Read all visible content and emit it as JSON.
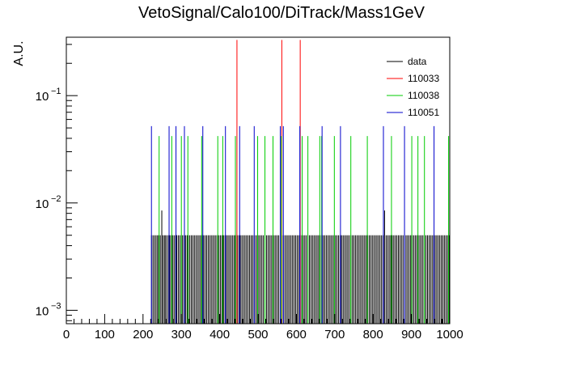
{
  "chart_data": {
    "type": "bar",
    "title": "VetoSignal/Calo100/DiTrack/Mass1GeV",
    "ylabel": "A.U.",
    "xlabel": "",
    "xlim": [
      0,
      1000
    ],
    "ylim": [
      0.00075,
      0.35
    ],
    "yscale": "log",
    "x_ticks": [
      0,
      100,
      200,
      300,
      400,
      500,
      600,
      700,
      800,
      900,
      1000
    ],
    "x_tick_labels": [
      "0",
      "100",
      "200",
      "300",
      "400",
      "500",
      "600",
      "700",
      "800",
      "900",
      "1000"
    ],
    "y_ticks": [
      0.001,
      0.01,
      0.1
    ],
    "y_tick_labels": [
      "10",
      "10",
      "10"
    ],
    "y_tick_exponents": [
      "−3",
      "−2",
      "−1"
    ],
    "legend_position": "top-right",
    "grid": false,
    "series": [
      {
        "name": "data",
        "color": "#000000",
        "note_values": "dense fill of bins at ~0.005 between x=220 and x=1000, with a few bins at ~0.0085",
        "points": [
          [
            222,
            0.005
          ],
          [
            226,
            0.005
          ],
          [
            230,
            0.005
          ],
          [
            234,
            0.005
          ],
          [
            238,
            0.005
          ],
          [
            241,
            0.005
          ],
          [
            245,
            0.005
          ],
          [
            249,
            0.0085
          ],
          [
            252,
            0.005
          ],
          [
            256,
            0.005
          ],
          [
            259,
            0.005
          ],
          [
            263,
            0.005
          ],
          [
            267,
            0.005
          ],
          [
            270,
            0.005
          ],
          [
            274,
            0.005
          ],
          [
            277,
            0.005
          ],
          [
            281,
            0.005
          ],
          [
            285,
            0.005
          ],
          [
            288,
            0.005
          ],
          [
            292,
            0.005
          ],
          [
            296,
            0.005
          ],
          [
            300,
            0.005
          ],
          [
            303,
            0.005
          ],
          [
            307,
            0.005
          ],
          [
            311,
            0.005
          ],
          [
            315,
            0.005
          ],
          [
            318,
            0.005
          ],
          [
            322,
            0.005
          ],
          [
            326,
            0.005
          ],
          [
            330,
            0.005
          ],
          [
            334,
            0.005
          ],
          [
            338,
            0.005
          ],
          [
            342,
            0.005
          ],
          [
            346,
            0.005
          ],
          [
            350,
            0.005
          ],
          [
            354,
            0.005
          ],
          [
            358,
            0.005
          ],
          [
            362,
            0.005
          ],
          [
            366,
            0.005
          ],
          [
            370,
            0.005
          ],
          [
            374,
            0.005
          ],
          [
            378,
            0.005
          ],
          [
            382,
            0.005
          ],
          [
            386,
            0.005
          ],
          [
            390,
            0.005
          ],
          [
            394,
            0.005
          ],
          [
            398,
            0.005
          ],
          [
            402,
            0.005
          ],
          [
            406,
            0.005
          ],
          [
            410,
            0.005
          ],
          [
            414,
            0.005
          ],
          [
            418,
            0.005
          ],
          [
            422,
            0.005
          ],
          [
            426,
            0.005
          ],
          [
            430,
            0.005
          ],
          [
            434,
            0.005
          ],
          [
            438,
            0.005
          ],
          [
            442,
            0.005
          ],
          [
            446,
            0.005
          ],
          [
            450,
            0.005
          ],
          [
            454,
            0.005
          ],
          [
            458,
            0.005
          ],
          [
            462,
            0.005
          ],
          [
            466,
            0.005
          ],
          [
            470,
            0.005
          ],
          [
            474,
            0.005
          ],
          [
            478,
            0.005
          ],
          [
            482,
            0.005
          ],
          [
            486,
            0.005
          ],
          [
            490,
            0.005
          ],
          [
            494,
            0.005
          ],
          [
            498,
            0.005
          ],
          [
            502,
            0.005
          ],
          [
            506,
            0.005
          ],
          [
            510,
            0.005
          ],
          [
            514,
            0.005
          ],
          [
            518,
            0.005
          ],
          [
            522,
            0.005
          ],
          [
            526,
            0.005
          ],
          [
            530,
            0.005
          ],
          [
            534,
            0.005
          ],
          [
            538,
            0.005
          ],
          [
            542,
            0.005
          ],
          [
            546,
            0.005
          ],
          [
            550,
            0.005
          ],
          [
            554,
            0.005
          ],
          [
            558,
            0.005
          ],
          [
            562,
            0.005
          ],
          [
            566,
            0.005
          ],
          [
            570,
            0.005
          ],
          [
            574,
            0.005
          ],
          [
            578,
            0.005
          ],
          [
            582,
            0.005
          ],
          [
            586,
            0.005
          ],
          [
            590,
            0.005
          ],
          [
            594,
            0.005
          ],
          [
            598,
            0.005
          ],
          [
            602,
            0.005
          ],
          [
            606,
            0.005
          ],
          [
            610,
            0.005
          ],
          [
            614,
            0.005
          ],
          [
            618,
            0.005
          ],
          [
            622,
            0.005
          ],
          [
            626,
            0.005
          ],
          [
            630,
            0.005
          ],
          [
            634,
            0.005
          ],
          [
            638,
            0.005
          ],
          [
            642,
            0.005
          ],
          [
            646,
            0.005
          ],
          [
            650,
            0.005
          ],
          [
            654,
            0.005
          ],
          [
            658,
            0.005
          ],
          [
            662,
            0.005
          ],
          [
            666,
            0.005
          ],
          [
            670,
            0.005
          ],
          [
            674,
            0.005
          ],
          [
            678,
            0.005
          ],
          [
            682,
            0.005
          ],
          [
            686,
            0.005
          ],
          [
            690,
            0.005
          ],
          [
            694,
            0.005
          ],
          [
            698,
            0.005
          ],
          [
            702,
            0.005
          ],
          [
            706,
            0.005
          ],
          [
            710,
            0.005
          ],
          [
            714,
            0.005
          ],
          [
            718,
            0.005
          ],
          [
            722,
            0.005
          ],
          [
            726,
            0.005
          ],
          [
            730,
            0.005
          ],
          [
            734,
            0.005
          ],
          [
            738,
            0.005
          ],
          [
            742,
            0.005
          ],
          [
            746,
            0.005
          ],
          [
            750,
            0.005
          ],
          [
            754,
            0.005
          ],
          [
            758,
            0.005
          ],
          [
            762,
            0.005
          ],
          [
            766,
            0.005
          ],
          [
            770,
            0.005
          ],
          [
            774,
            0.005
          ],
          [
            778,
            0.005
          ],
          [
            782,
            0.005
          ],
          [
            786,
            0.005
          ],
          [
            790,
            0.005
          ],
          [
            794,
            0.005
          ],
          [
            798,
            0.005
          ],
          [
            802,
            0.005
          ],
          [
            806,
            0.005
          ],
          [
            810,
            0.005
          ],
          [
            814,
            0.005
          ],
          [
            818,
            0.005
          ],
          [
            822,
            0.005
          ],
          [
            826,
            0.005
          ],
          [
            830,
            0.0085
          ],
          [
            834,
            0.005
          ],
          [
            838,
            0.005
          ],
          [
            842,
            0.005
          ],
          [
            846,
            0.005
          ],
          [
            850,
            0.005
          ],
          [
            854,
            0.005
          ],
          [
            858,
            0.005
          ],
          [
            862,
            0.005
          ],
          [
            866,
            0.005
          ],
          [
            870,
            0.005
          ],
          [
            874,
            0.005
          ],
          [
            878,
            0.005
          ],
          [
            882,
            0.005
          ],
          [
            886,
            0.005
          ],
          [
            890,
            0.005
          ],
          [
            894,
            0.005
          ],
          [
            898,
            0.005
          ],
          [
            902,
            0.005
          ],
          [
            906,
            0.005
          ],
          [
            910,
            0.005
          ],
          [
            914,
            0.005
          ],
          [
            918,
            0.005
          ],
          [
            922,
            0.005
          ],
          [
            926,
            0.005
          ],
          [
            930,
            0.005
          ],
          [
            934,
            0.005
          ],
          [
            938,
            0.005
          ],
          [
            942,
            0.005
          ],
          [
            946,
            0.005
          ],
          [
            950,
            0.005
          ],
          [
            954,
            0.005
          ],
          [
            958,
            0.005
          ],
          [
            962,
            0.005
          ],
          [
            966,
            0.005
          ],
          [
            970,
            0.005
          ],
          [
            974,
            0.005
          ],
          [
            978,
            0.005
          ],
          [
            982,
            0.005
          ],
          [
            986,
            0.005
          ],
          [
            990,
            0.005
          ],
          [
            994,
            0.005
          ],
          [
            998,
            0.005
          ]
        ]
      },
      {
        "name": "110033",
        "color": "#ff0000",
        "points": [
          [
            445,
            0.33
          ],
          [
            562,
            0.33
          ],
          [
            610,
            0.33
          ]
        ]
      },
      {
        "name": "110038",
        "color": "#00cc00",
        "points": [
          [
            242,
            0.042
          ],
          [
            275,
            0.042
          ],
          [
            300,
            0.042
          ],
          [
            317,
            0.042
          ],
          [
            353,
            0.042
          ],
          [
            395,
            0.042
          ],
          [
            408,
            0.042
          ],
          [
            441,
            0.042
          ],
          [
            499,
            0.042
          ],
          [
            518,
            0.042
          ],
          [
            539,
            0.042
          ],
          [
            561,
            0.042
          ],
          [
            615,
            0.042
          ],
          [
            630,
            0.042
          ],
          [
            661,
            0.042
          ],
          [
            666,
            0.042
          ],
          [
            699,
            0.042
          ],
          [
            742,
            0.042
          ],
          [
            785,
            0.042
          ],
          [
            848,
            0.042
          ],
          [
            901,
            0.042
          ],
          [
            917,
            0.042
          ],
          [
            934,
            0.042
          ],
          [
            997,
            0.042
          ]
        ]
      },
      {
        "name": "110051",
        "color": "#0000cc",
        "points": [
          [
            222,
            0.052
          ],
          [
            268,
            0.052
          ],
          [
            286,
            0.052
          ],
          [
            308,
            0.052
          ],
          [
            356,
            0.052
          ],
          [
            415,
            0.052
          ],
          [
            452,
            0.052
          ],
          [
            490,
            0.052
          ],
          [
            558,
            0.052
          ],
          [
            566,
            0.052
          ],
          [
            609,
            0.052
          ],
          [
            667,
            0.052
          ],
          [
            715,
            0.052
          ],
          [
            827,
            0.052
          ],
          [
            882,
            0.052
          ],
          [
            959,
            0.052
          ]
        ]
      }
    ]
  }
}
